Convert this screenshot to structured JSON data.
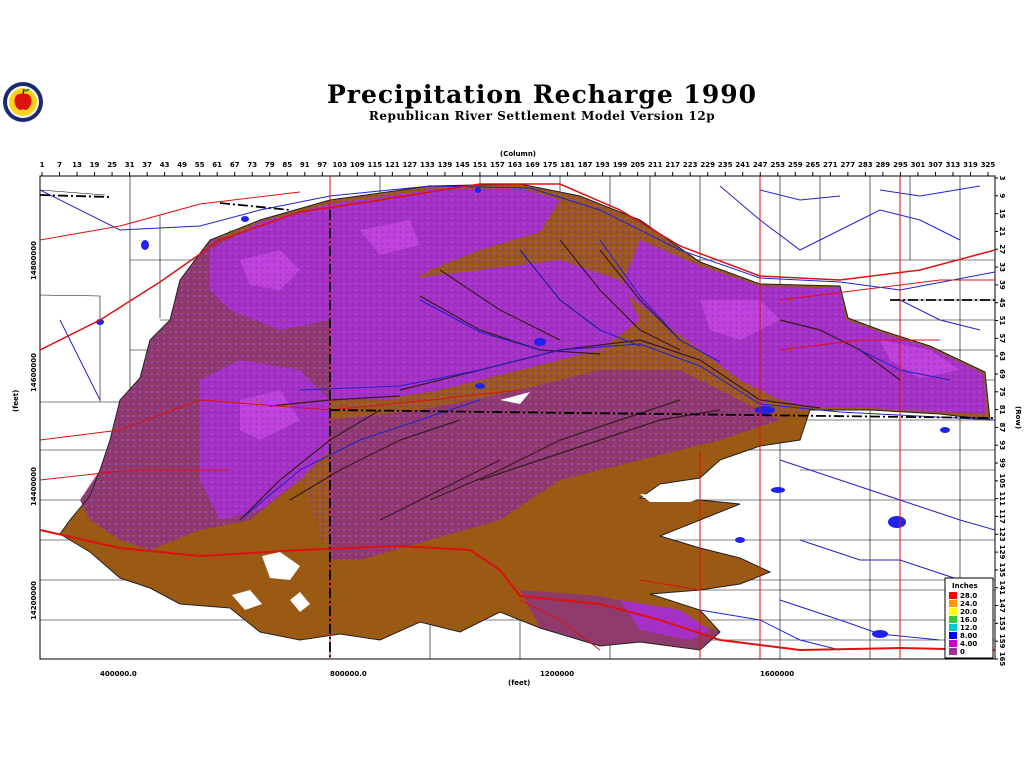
{
  "title": "Precipitation Recharge 1990",
  "subtitle": "Republican River Settlement Model Version 12p",
  "logo_icon": "apple-seal-icon",
  "axes": {
    "column_label": "(Column)",
    "row_label": "(Row)",
    "x_label": "(feet)",
    "y_label": "(feet)",
    "column_ticks": [
      "1",
      "7",
      "13",
      "19",
      "25",
      "31",
      "37",
      "43",
      "49",
      "55",
      "61",
      "67",
      "73",
      "79",
      "85",
      "91",
      "97",
      "103",
      "109",
      "115",
      "121",
      "127",
      "133",
      "139",
      "145",
      "151",
      "157",
      "163",
      "169",
      "175",
      "181",
      "187",
      "193",
      "199",
      "205",
      "211",
      "217",
      "223",
      "229",
      "235",
      "241",
      "247",
      "253",
      "259",
      "265",
      "271",
      "277",
      "283",
      "289",
      "295",
      "301",
      "307",
      "313",
      "319",
      "325"
    ],
    "row_ticks": [
      "3",
      "9",
      "15",
      "21",
      "27",
      "33",
      "39",
      "45",
      "51",
      "57",
      "63",
      "69",
      "75",
      "81",
      "87",
      "93",
      "99",
      "105",
      "111",
      "117",
      "123",
      "129",
      "135",
      "141",
      "147",
      "153",
      "159",
      "165"
    ],
    "x_ticks": [
      "400000.0",
      "800000.0",
      "1200000",
      "1600000"
    ],
    "y_ticks": [
      "14800000",
      "14600000",
      "14400000",
      "14200000"
    ]
  },
  "legend": {
    "title": "Inches",
    "items": [
      {
        "label": "28.0",
        "color": "#ff0000"
      },
      {
        "label": "24.0",
        "color": "#ff9900"
      },
      {
        "label": "20.0",
        "color": "#ffff00"
      },
      {
        "label": "16.0",
        "color": "#33cc33"
      },
      {
        "label": "12.0",
        "color": "#00cccc"
      },
      {
        "label": "8.00",
        "color": "#0000ff"
      },
      {
        "label": "4.00",
        "color": "#cc00cc"
      },
      {
        "label": "0",
        "color": "#993399"
      }
    ]
  },
  "colors": {
    "brown_zone": "#9a5a14",
    "maroon_zone": "#8e3a6a",
    "purple_zone": "#a430c8",
    "violet_zone": "#c040e0",
    "rivers": "#2222cc",
    "roads": "#dd1111",
    "boundaries": "#000000"
  }
}
